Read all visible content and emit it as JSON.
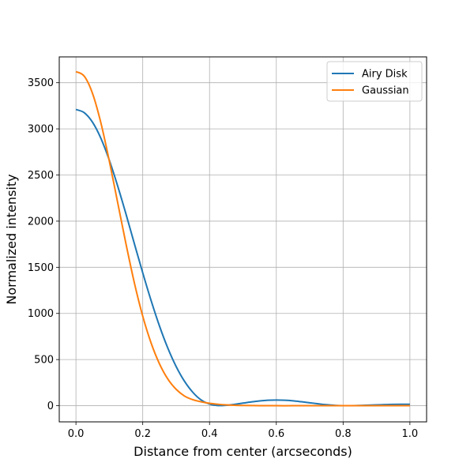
{
  "chart_data": {
    "type": "line",
    "title": "",
    "xlabel": "Distance from center (arcseconds)",
    "ylabel": "Normalized intensity",
    "xlim": [
      -0.05,
      1.05
    ],
    "ylim": [
      -175,
      3780
    ],
    "xticks": [
      0.0,
      0.2,
      0.4,
      0.6,
      0.8,
      1.0
    ],
    "xtick_labels": [
      "0.0",
      "0.2",
      "0.4",
      "0.6",
      "0.8",
      "1.0"
    ],
    "yticks": [
      0,
      500,
      1000,
      1500,
      2000,
      2500,
      3000,
      3500
    ],
    "ytick_labels": [
      "0",
      "500",
      "1000",
      "1500",
      "2000",
      "2500",
      "3000",
      "3500"
    ],
    "grid": true,
    "legend_position": "top-right",
    "series": [
      {
        "name": "Airy Disk",
        "color": "#1f77b4",
        "x": [
          0.0,
          0.025,
          0.05,
          0.075,
          0.1,
          0.125,
          0.15,
          0.175,
          0.2,
          0.225,
          0.25,
          0.275,
          0.3,
          0.325,
          0.35,
          0.375,
          0.4,
          0.425,
          0.45,
          0.475,
          0.5,
          0.525,
          0.55,
          0.575,
          0.6,
          0.625,
          0.65,
          0.675,
          0.7,
          0.725,
          0.75,
          0.775,
          0.8,
          0.825,
          0.85,
          0.875,
          0.9,
          0.925,
          0.95,
          0.975,
          1.0
        ],
        "y": [
          3210,
          3175,
          3070,
          2895,
          2660,
          2380,
          2075,
          1755,
          1440,
          1140,
          865,
          625,
          425,
          265,
          145,
          62,
          18,
          2,
          5,
          15,
          28,
          41,
          52,
          59,
          61,
          59,
          53,
          43,
          32,
          21,
          11,
          4,
          1,
          1,
          3,
          6,
          9,
          12,
          14,
          15,
          15
        ]
      },
      {
        "name": "Gaussian",
        "color": "#ff7f0e",
        "x": [
          0.0,
          0.025,
          0.05,
          0.075,
          0.1,
          0.125,
          0.15,
          0.175,
          0.2,
          0.225,
          0.25,
          0.275,
          0.3,
          0.325,
          0.35,
          0.375,
          0.4,
          0.425,
          0.45,
          0.475,
          0.5,
          0.55,
          0.6,
          0.65,
          0.7,
          0.75,
          0.8,
          0.85,
          0.9,
          0.95,
          1.0
        ],
        "y": [
          3620,
          3570,
          3380,
          3060,
          2650,
          2200,
          1750,
          1330,
          970,
          680,
          455,
          290,
          178,
          105,
          65,
          42,
          26,
          16,
          9,
          5,
          3,
          1,
          0,
          0,
          0,
          0,
          0,
          0,
          0,
          0,
          0
        ]
      }
    ]
  }
}
